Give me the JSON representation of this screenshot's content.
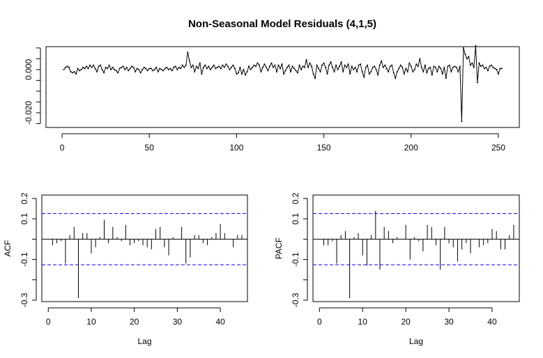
{
  "chart_data": [
    {
      "type": "line",
      "title": "Non-Seasonal Model Residuals (4,1,5)",
      "color": "#000000",
      "x": [
        1,
        2,
        3,
        4,
        5,
        6,
        7,
        8,
        9,
        10,
        11,
        12,
        13,
        14,
        15,
        16,
        17,
        18,
        19,
        20,
        21,
        22,
        23,
        24,
        25,
        26,
        27,
        28,
        29,
        30,
        31,
        32,
        33,
        34,
        35,
        36,
        37,
        38,
        39,
        40,
        41,
        42,
        43,
        44,
        45,
        46,
        47,
        48,
        49,
        50,
        51,
        52,
        53,
        54,
        55,
        56,
        57,
        58,
        59,
        60,
        61,
        62,
        63,
        64,
        65,
        66,
        67,
        68,
        69,
        70,
        71,
        72,
        73,
        74,
        75,
        76,
        77,
        78,
        79,
        80,
        81,
        82,
        83,
        84,
        85,
        86,
        87,
        88,
        89,
        90,
        91,
        92,
        93,
        94,
        95,
        96,
        97,
        98,
        99,
        100,
        101,
        102,
        103,
        104,
        105,
        106,
        107,
        108,
        109,
        110,
        111,
        112,
        113,
        114,
        115,
        116,
        117,
        118,
        119,
        120,
        121,
        122,
        123,
        124,
        125,
        126,
        127,
        128,
        129,
        130,
        131,
        132,
        133,
        134,
        135,
        136,
        137,
        138,
        139,
        140,
        141,
        142,
        143,
        144,
        145,
        146,
        147,
        148,
        149,
        150,
        151,
        152,
        153,
        154,
        155,
        156,
        157,
        158,
        159,
        160,
        161,
        162,
        163,
        164,
        165,
        166,
        167,
        168,
        169,
        170,
        171,
        172,
        173,
        174,
        175,
        176,
        177,
        178,
        179,
        180,
        181,
        182,
        183,
        184,
        185,
        186,
        187,
        188,
        189,
        190,
        191,
        192,
        193,
        194,
        195,
        196,
        197,
        198,
        199,
        200,
        201,
        202,
        203,
        204,
        205,
        206,
        207,
        208,
        209,
        210,
        211,
        212,
        213,
        214,
        215,
        216,
        217,
        218,
        219,
        220,
        221,
        222,
        223,
        224,
        225,
        226,
        227,
        228,
        229,
        230,
        231,
        232,
        233,
        234,
        235,
        236,
        237,
        238,
        239,
        240,
        241,
        242,
        243,
        244,
        245,
        246,
        247,
        248,
        249,
        250,
        251,
        252
      ],
      "values": [
        0,
        0.001,
        0.0015,
        0.001,
        -0.001,
        -0.0015,
        -0.001,
        -0.002,
        0.0005,
        -0.0005,
        0,
        0.001,
        0.0005,
        0.0015,
        0.0005,
        0.002,
        0.001,
        0.002,
        0.0005,
        -0.001,
        0.0015,
        0.002,
        0,
        -0.0015,
        0.001,
        0.0005,
        0.002,
        0,
        0.001,
        0,
        -0.0005,
        -0.0015,
        0.0005,
        0.001,
        0.0015,
        0,
        0.001,
        -0.0005,
        0.0005,
        0.0015,
        0.001,
        -0.001,
        0.0005,
        0,
        -0.0015,
        0,
        0.001,
        0.0005,
        -0.0005,
        0.0005,
        0.0005,
        -0.0005,
        0,
        0.001,
        -0.001,
        0.0005,
        0,
        -0.0005,
        0.0005,
        0.001,
        0,
        0.0005,
        -0.0005,
        0.001,
        0.0015,
        0,
        0.001,
        0.0005,
        0.002,
        0.001,
        0.002,
        0.008,
        0.004,
        0.001,
        0.002,
        -0.001,
        0.0015,
        0.0005,
        0.003,
        -0.002,
        0.001,
        0.002,
        0.0005,
        0.0015,
        0,
        0.001,
        0.002,
        0.0005,
        0.001,
        0.0015,
        0.0005,
        0.002,
        0.001,
        0.0025,
        0.0015,
        0,
        0.001,
        0.002,
        0.0005,
        -0.002,
        -0.0015,
        0.001,
        -0.002,
        0,
        -0.0025,
        -0.001,
        0.0015,
        0,
        0.001,
        0.002,
        0.0015,
        0.003,
        0.002,
        -0.001,
        0.001,
        0.0025,
        0.001,
        -0.0005,
        0.0015,
        0.003,
        0.001,
        0.002,
        -0.001,
        0.002,
        0.0005,
        0.0025,
        -0.002,
        -0.0005,
        0.001,
        0.002,
        -0.001,
        0.0015,
        0.0005,
        -0.0005,
        -0.0015,
        0.002,
        0,
        0.0015,
        0.001,
        0.0045,
        0.001,
        0.003,
        0.0015,
        -0.002,
        -0.004,
        0.002,
        0.0005,
        -0.001,
        0.002,
        0.003,
        0.001,
        -0.002,
        0.002,
        0.0035,
        0.001,
        -0.001,
        0.002,
        0,
        0.0015,
        0.0035,
        -0.001,
        0.002,
        0.001,
        0.0025,
        -0.002,
        0.0015,
        0,
        0.001,
        -0.001,
        0.002,
        0.0025,
        -0.001,
        -0.0035,
        0.001,
        0.002,
        -0.002,
        -0.001,
        0.001,
        0.0015,
        0,
        -0.0025,
        0.002,
        0.004,
        0.001,
        0.002,
        0.0005,
        -0.001,
        0.0015,
        0.002,
        -0.0015,
        -0.004,
        -0.001,
        0.0005,
        0.002,
        0.001,
        -0.002,
        0.0005,
        -0.001,
        0.003,
        0.0015,
        -0.001,
        0,
        0.0025,
        0.0015,
        0.005,
        0.001,
        -0.001,
        0.002,
        -0.0015,
        0.0005,
        0.001,
        -0.0025,
        0.0015,
        0.001,
        -0.001,
        0.0015,
        0.0005,
        -0.002,
        0.001,
        -0.004,
        0.0015,
        0.002,
        -0.001,
        0.001,
        0.0015,
        0.001,
        -0.001,
        0.0015,
        -0.024,
        0.01,
        0.007,
        0.005,
        0.006,
        0.002,
        0.003,
        0.001,
        0.011,
        -0.006,
        0.003,
        0.0015,
        0.002,
        0.0005,
        0.001,
        -0.0005,
        0.0015,
        0.002,
        0.001,
        0.0005,
        0,
        -0.002,
        0.0005,
        0.0005
      ],
      "xlim": [
        -9.2,
        262
      ],
      "xticks": [
        0,
        50,
        100,
        150,
        200,
        250
      ],
      "ylim": [
        -0.0268,
        0.0106
      ],
      "yticks": [
        {
          "value": 0,
          "label": "0.000"
        },
        {
          "value": -0.02,
          "label": "-0.020"
        }
      ],
      "yminor_ticks": [
        0.01,
        0.005,
        -0.005,
        -0.01,
        -0.015,
        -0.025
      ]
    },
    {
      "type": "acf",
      "ylabel": "ACF",
      "xlabel": "Lag",
      "color": "#000000",
      "ci_bound": 0.126,
      "ci_color": "#0000ff",
      "x": [
        1,
        2,
        3,
        4,
        5,
        6,
        7,
        8,
        9,
        10,
        11,
        12,
        13,
        14,
        15,
        16,
        17,
        18,
        19,
        20,
        21,
        22,
        23,
        24,
        25,
        26,
        27,
        28,
        29,
        30,
        31,
        32,
        33,
        34,
        35,
        36,
        37,
        38,
        39,
        40,
        41,
        42,
        43,
        44,
        45
      ],
      "values": [
        -0.03,
        -0.02,
        -0.01,
        -0.12,
        0.02,
        0.06,
        -0.29,
        0.03,
        0.03,
        -0.07,
        -0.04,
        0.01,
        0.095,
        -0.02,
        0.06,
        0.01,
        -0.01,
        0.07,
        -0.03,
        -0.02,
        -0.01,
        -0.03,
        -0.04,
        -0.05,
        0.05,
        0.06,
        -0.04,
        -0.08,
        0.01,
        0,
        0.06,
        -0.12,
        -0.09,
        0.02,
        0.02,
        -0.02,
        -0.03,
        0.01,
        0.03,
        0.075,
        0.03,
        0,
        -0.04,
        0.02,
        0.02
      ],
      "xlim": [
        -1.5,
        46.3
      ],
      "xticks": [
        0,
        10,
        20,
        30,
        40
      ],
      "ylim": [
        -0.307,
        0.217
      ],
      "yticks": [
        0.2,
        0.1,
        -0.1,
        -0.3
      ],
      "yminor_ticks": [
        0,
        -0.2
      ]
    },
    {
      "type": "acf",
      "ylabel": "PACF",
      "xlabel": "Lag",
      "color": "#000000",
      "ci_bound": 0.126,
      "ci_color": "#0000ff",
      "x": [
        1,
        2,
        3,
        4,
        5,
        6,
        7,
        8,
        9,
        10,
        11,
        12,
        13,
        14,
        15,
        16,
        17,
        18,
        19,
        20,
        21,
        22,
        23,
        24,
        25,
        26,
        27,
        28,
        29,
        30,
        31,
        32,
        33,
        34,
        35,
        36,
        37,
        38,
        39,
        40,
        41,
        42,
        43,
        44,
        45
      ],
      "values": [
        -0.03,
        -0.03,
        -0.01,
        -0.12,
        0.02,
        0.04,
        -0.29,
        0.01,
        0.03,
        -0.08,
        -0.13,
        0.02,
        0.14,
        -0.15,
        0.06,
        0.04,
        -0.02,
        0.01,
        0,
        0.07,
        -0.1,
        0.01,
        -0.01,
        -0.06,
        0.07,
        0.06,
        -0.03,
        -0.15,
        0.06,
        -0.02,
        -0.04,
        -0.11,
        -0.05,
        -0.02,
        -0.07,
        0,
        -0.04,
        -0.03,
        -0.02,
        0.05,
        0.04,
        -0.05,
        -0.05,
        0.02,
        0.07
      ],
      "xlim": [
        -1.5,
        46.3
      ],
      "xticks": [
        0,
        10,
        20,
        30,
        40
      ],
      "ylim": [
        -0.307,
        0.217
      ],
      "yticks": [
        0.2,
        0.1,
        -0.1,
        -0.3
      ],
      "yminor_ticks": [
        0,
        -0.2
      ]
    }
  ]
}
